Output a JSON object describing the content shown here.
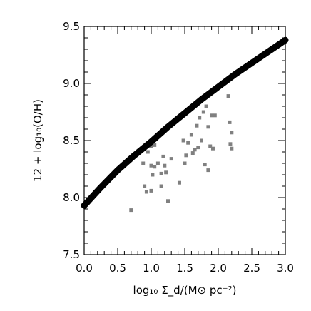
{
  "chart_data": {
    "type": "scatter",
    "title": "",
    "xlabel": "log₁₀ Σ_d/(M⊙ pc⁻²)",
    "ylabel": "12 + log₁₀(O/H)",
    "xlim": [
      0.0,
      3.0
    ],
    "ylim": [
      7.5,
      9.5
    ],
    "x_ticks": [
      "0.0",
      "0.5",
      "1.0",
      "1.5",
      "2.0",
      "2.5",
      "3.0"
    ],
    "y_ticks": [
      "7.5",
      "8.0",
      "8.5",
      "9.0",
      "9.5"
    ],
    "grid": false,
    "legend": "none",
    "series": [
      {
        "type": "line",
        "color": "#000000",
        "x": [
          0.0,
          0.25,
          0.5,
          0.75,
          1.0,
          1.25,
          1.5,
          1.75,
          2.0,
          2.25,
          2.5,
          2.75,
          3.0
        ],
        "y": [
          7.93,
          8.09,
          8.24,
          8.37,
          8.49,
          8.62,
          8.74,
          8.86,
          8.97,
          9.08,
          9.18,
          9.28,
          9.38
        ]
      },
      {
        "type": "scatter",
        "color": "#808080",
        "x": [
          0.7,
          0.88,
          0.9,
          0.93,
          0.95,
          1.0,
          1.0,
          1.0,
          1.02,
          1.05,
          1.05,
          1.1,
          1.15,
          1.15,
          1.18,
          1.2,
          1.22,
          1.25,
          1.3,
          1.42,
          1.48,
          1.5,
          1.52,
          1.55,
          1.6,
          1.62,
          1.65,
          1.68,
          1.7,
          1.72,
          1.75,
          1.78,
          1.8,
          1.82,
          1.85,
          1.85,
          1.88,
          1.9,
          1.92,
          1.95,
          2.15,
          2.17,
          2.18,
          2.2,
          2.2
        ],
        "y": [
          7.89,
          8.3,
          8.1,
          8.05,
          8.4,
          8.28,
          8.06,
          8.45,
          8.2,
          8.46,
          8.27,
          8.3,
          8.21,
          8.1,
          8.36,
          8.28,
          8.22,
          7.97,
          8.34,
          8.13,
          8.5,
          8.3,
          8.37,
          8.48,
          8.55,
          8.39,
          8.42,
          8.63,
          8.44,
          8.7,
          8.5,
          8.75,
          8.29,
          8.8,
          8.62,
          8.24,
          8.45,
          8.72,
          8.43,
          8.72,
          8.89,
          8.66,
          8.47,
          8.43,
          8.57
        ]
      }
    ]
  }
}
